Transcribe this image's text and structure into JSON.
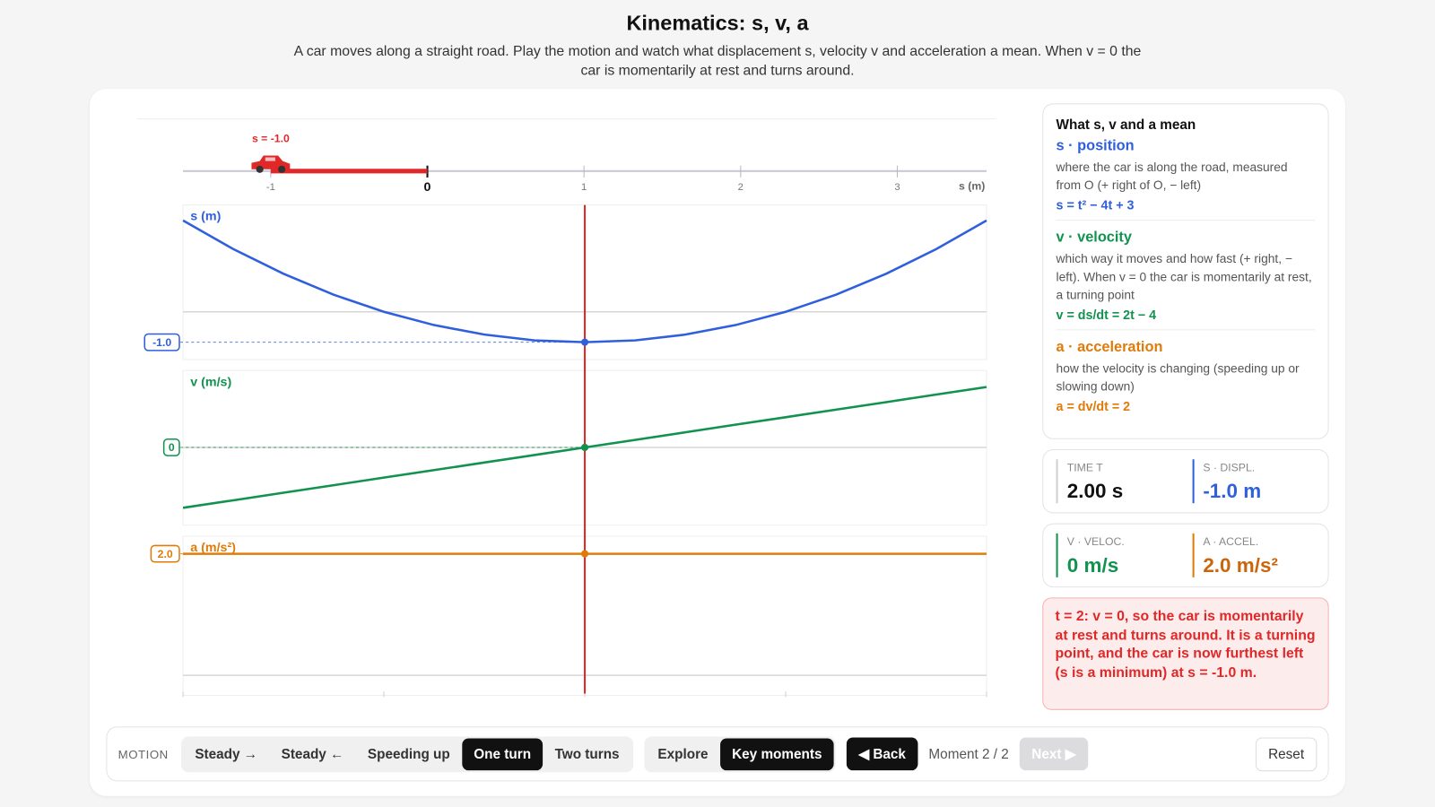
{
  "header": {
    "title": "Kinematics: s, v, a",
    "subtitle": "A car moves along a straight road. Play the motion and watch what displacement s, velocity v and acceleration a mean. When v = 0 the car is momentarily at rest and turns around."
  },
  "road": {
    "xlim": [
      -1.56,
      3.57
    ],
    "ticks": [
      -1,
      0,
      1,
      2,
      3
    ],
    "axis_label": "s (m)",
    "car_label": "s = -1.0",
    "car_position": -1.0,
    "color": "#e02828"
  },
  "plots": {
    "tlim": [
      0,
      4
    ],
    "tticks": [
      0,
      1,
      2,
      3,
      4
    ],
    "cursor_t": 2,
    "cursor_color": "#e02828",
    "t": [
      0,
      0.25,
      0.5,
      0.75,
      1,
      1.25,
      1.5,
      1.75,
      2,
      2.25,
      2.5,
      2.75,
      3,
      3.25,
      3.5,
      3.75,
      4
    ],
    "panels": [
      {
        "label": "s (m)",
        "color": "#2f5fdc",
        "ylim": [
          -1.57,
          3.51
        ],
        "grid": [
          0
        ],
        "values": [
          3,
          2.0625,
          1.25,
          0.5625,
          0,
          -0.4375,
          -0.75,
          -0.9375,
          -1,
          -0.9375,
          -0.75,
          -0.4375,
          0,
          0.5625,
          1.25,
          2.0625,
          3
        ],
        "marker_value": -1.0,
        "marker_label": "-1.0"
      },
      {
        "label": "v (m/s)",
        "color": "#12924f",
        "ylim": [
          -5.15,
          5.09
        ],
        "grid": [
          0
        ],
        "values": [
          -4,
          -3.5,
          -3,
          -2.5,
          -2,
          -1.5,
          -1,
          -0.5,
          0,
          0.5,
          1,
          1.5,
          2,
          2.5,
          3,
          3.5,
          4
        ],
        "marker_value": 0,
        "marker_label": "0"
      },
      {
        "label": "a (m/s²)",
        "color": "#e07b0a",
        "ylim": [
          -0.33,
          2.29
        ],
        "grid": [
          0
        ],
        "values": [
          2,
          2,
          2,
          2,
          2,
          2,
          2,
          2,
          2,
          2,
          2,
          2,
          2,
          2,
          2,
          2,
          2
        ],
        "marker_value": 2.0,
        "marker_label": "2.0"
      }
    ]
  },
  "legend_card": {
    "title": "What s, v and a mean",
    "items": [
      {
        "name": "s · position",
        "color": "#2f5fdc",
        "description": "where the car is along the road, measured from O (+ right of O, − left)",
        "formula": "s = t² − 4t + 3"
      },
      {
        "name": "v · velocity",
        "color": "#12924f",
        "description": "which way it moves and how fast (+ right, − left). When v = 0 the car is momentarily at rest, a turning point",
        "formula": "v = ds/dt = 2t − 4"
      },
      {
        "name": "a · acceleration",
        "color": "#e07b0a",
        "description": "how the velocity is changing (speeding up or slowing down)",
        "formula": "a = dv/dt = 2"
      }
    ]
  },
  "readouts": [
    {
      "label": "TIME T",
      "value": "2.00 s",
      "color": "#111111",
      "border": "#d0d0d0"
    },
    {
      "label": "S · DISPL.",
      "value": "-1.0 m",
      "color": "#2f5fdc",
      "border": "#2f5fdc"
    },
    {
      "label": "V · VELOC.",
      "value": "0 m/s",
      "color": "#12924f",
      "border": "#12924f"
    },
    {
      "label": "A · ACCEL.",
      "value": "2.0 m/s²",
      "color": "#c9650a",
      "border": "#e07b0a"
    }
  ],
  "alert": {
    "text": "t = 2: v = 0, so the car is momentarily at rest and turns around. It is a turning point, and the car is now furthest left (s is a minimum) at s = -1.0 m."
  },
  "controls": {
    "motion_label": "MOTION",
    "motions": [
      {
        "label": "Steady →"
      },
      {
        "label": "Steady ←"
      },
      {
        "label": "Speeding up"
      },
      {
        "label": "One turn",
        "active": true
      },
      {
        "label": "Two turns"
      }
    ],
    "modes": [
      {
        "label": "Explore"
      },
      {
        "label": "Key moments",
        "active": true
      }
    ],
    "back": "◀ Back",
    "moment": "Moment 2 / 2",
    "next": {
      "label": "Next ▶",
      "disabled": true
    },
    "reset": "Reset"
  }
}
